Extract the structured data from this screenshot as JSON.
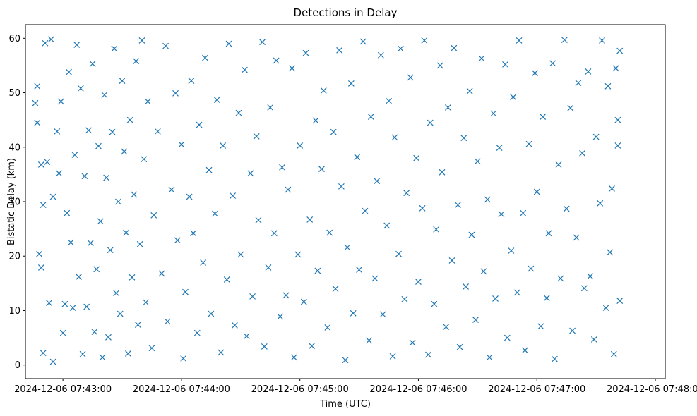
{
  "chart_data": {
    "type": "scatter",
    "title": "Detections in Delay",
    "xlabel": "Time (UTC)",
    "ylabel": "Bistatic Delay (km)",
    "marker": "x",
    "color": "#1f77b4",
    "x_range": [
      "2024-12-06 07:42:41",
      "2024-12-06 07:48:05"
    ],
    "ylim": [
      -2.5,
      62.5
    ],
    "x_ticks": [
      "2024-12-06 07:43:00",
      "2024-12-06 07:44:00",
      "2024-12-06 07:45:00",
      "2024-12-06 07:46:00",
      "2024-12-06 07:47:00",
      "2024-12-06 07:48:00"
    ],
    "y_ticks": [
      0,
      10,
      20,
      30,
      40,
      50,
      60
    ],
    "grid": false,
    "legend": "none",
    "sampled": "representative subset of the plotted detections",
    "points": [
      [
        "2024-12-06 07:42:46",
        48.1
      ],
      [
        "2024-12-06 07:42:47",
        51.2
      ],
      [
        "2024-12-06 07:42:47",
        44.5
      ],
      [
        "2024-12-06 07:42:48",
        20.4
      ],
      [
        "2024-12-06 07:42:49",
        36.8
      ],
      [
        "2024-12-06 07:42:49",
        17.9
      ],
      [
        "2024-12-06 07:42:50",
        29.4
      ],
      [
        "2024-12-06 07:42:50",
        2.2
      ],
      [
        "2024-12-06 07:42:51",
        59.1
      ],
      [
        "2024-12-06 07:42:52",
        37.3
      ],
      [
        "2024-12-06 07:42:53",
        11.4
      ],
      [
        "2024-12-06 07:42:54",
        59.8
      ],
      [
        "2024-12-06 07:42:55",
        0.6
      ],
      [
        "2024-12-06 07:42:55",
        30.9
      ],
      [
        "2024-12-06 07:42:57",
        42.9
      ],
      [
        "2024-12-06 07:42:58",
        35.2
      ],
      [
        "2024-12-06 07:42:59",
        48.4
      ],
      [
        "2024-12-06 07:43:00",
        5.9
      ],
      [
        "2024-12-06 07:43:01",
        11.2
      ],
      [
        "2024-12-06 07:43:02",
        27.9
      ],
      [
        "2024-12-06 07:43:03",
        53.8
      ],
      [
        "2024-12-06 07:43:04",
        22.5
      ],
      [
        "2024-12-06 07:43:05",
        10.5
      ],
      [
        "2024-12-06 07:43:06",
        38.6
      ],
      [
        "2024-12-06 07:43:07",
        58.8
      ],
      [
        "2024-12-06 07:43:08",
        16.2
      ],
      [
        "2024-12-06 07:43:09",
        50.8
      ],
      [
        "2024-12-06 07:43:10",
        2.0
      ],
      [
        "2024-12-06 07:43:11",
        34.7
      ],
      [
        "2024-12-06 07:43:12",
        10.7
      ],
      [
        "2024-12-06 07:43:13",
        43.1
      ],
      [
        "2024-12-06 07:43:14",
        22.4
      ],
      [
        "2024-12-06 07:43:15",
        55.3
      ],
      [
        "2024-12-06 07:43:16",
        6.1
      ],
      [
        "2024-12-06 07:43:17",
        17.6
      ],
      [
        "2024-12-06 07:43:18",
        40.2
      ],
      [
        "2024-12-06 07:43:19",
        26.4
      ],
      [
        "2024-12-06 07:43:20",
        1.4
      ],
      [
        "2024-12-06 07:43:21",
        49.6
      ],
      [
        "2024-12-06 07:43:22",
        34.4
      ],
      [
        "2024-12-06 07:43:23",
        5.1
      ],
      [
        "2024-12-06 07:43:24",
        21.1
      ],
      [
        "2024-12-06 07:43:25",
        42.8
      ],
      [
        "2024-12-06 07:43:26",
        58.1
      ],
      [
        "2024-12-06 07:43:27",
        13.2
      ],
      [
        "2024-12-06 07:43:28",
        30.0
      ],
      [
        "2024-12-06 07:43:29",
        9.4
      ],
      [
        "2024-12-06 07:43:30",
        52.2
      ],
      [
        "2024-12-06 07:43:31",
        39.2
      ],
      [
        "2024-12-06 07:43:32",
        24.3
      ],
      [
        "2024-12-06 07:43:33",
        2.1
      ],
      [
        "2024-12-06 07:43:34",
        45.0
      ],
      [
        "2024-12-06 07:43:35",
        16.1
      ],
      [
        "2024-12-06 07:43:36",
        31.3
      ],
      [
        "2024-12-06 07:43:37",
        55.8
      ],
      [
        "2024-12-06 07:43:38",
        7.4
      ],
      [
        "2024-12-06 07:43:39",
        22.2
      ],
      [
        "2024-12-06 07:43:40",
        59.6
      ],
      [
        "2024-12-06 07:43:41",
        37.8
      ],
      [
        "2024-12-06 07:43:42",
        11.5
      ],
      [
        "2024-12-06 07:43:43",
        48.4
      ],
      [
        "2024-12-06 07:43:45",
        3.1
      ],
      [
        "2024-12-06 07:43:46",
        27.5
      ],
      [
        "2024-12-06 07:43:48",
        42.9
      ],
      [
        "2024-12-06 07:43:50",
        16.8
      ],
      [
        "2024-12-06 07:43:52",
        58.6
      ],
      [
        "2024-12-06 07:43:53",
        8.0
      ],
      [
        "2024-12-06 07:43:55",
        32.2
      ],
      [
        "2024-12-06 07:43:57",
        49.9
      ],
      [
        "2024-12-06 07:43:58",
        22.9
      ],
      [
        "2024-12-06 07:44:00",
        40.5
      ],
      [
        "2024-12-06 07:44:01",
        1.2
      ],
      [
        "2024-12-06 07:44:02",
        13.4
      ],
      [
        "2024-12-06 07:44:04",
        30.9
      ],
      [
        "2024-12-06 07:44:05",
        52.2
      ],
      [
        "2024-12-06 07:44:06",
        24.2
      ],
      [
        "2024-12-06 07:44:08",
        5.9
      ],
      [
        "2024-12-06 07:44:09",
        44.1
      ],
      [
        "2024-12-06 07:44:11",
        18.8
      ],
      [
        "2024-12-06 07:44:12",
        56.4
      ],
      [
        "2024-12-06 07:44:14",
        35.8
      ],
      [
        "2024-12-06 07:44:15",
        9.4
      ],
      [
        "2024-12-06 07:44:17",
        27.8
      ],
      [
        "2024-12-06 07:44:18",
        48.7
      ],
      [
        "2024-12-06 07:44:20",
        2.3
      ],
      [
        "2024-12-06 07:44:21",
        40.3
      ],
      [
        "2024-12-06 07:44:23",
        15.7
      ],
      [
        "2024-12-06 07:44:24",
        59.0
      ],
      [
        "2024-12-06 07:44:26",
        31.1
      ],
      [
        "2024-12-06 07:44:27",
        7.3
      ],
      [
        "2024-12-06 07:44:29",
        46.3
      ],
      [
        "2024-12-06 07:44:30",
        20.3
      ],
      [
        "2024-12-06 07:44:32",
        54.2
      ],
      [
        "2024-12-06 07:44:33",
        5.3
      ],
      [
        "2024-12-06 07:44:35",
        35.2
      ],
      [
        "2024-12-06 07:44:36",
        12.6
      ],
      [
        "2024-12-06 07:44:38",
        42.0
      ],
      [
        "2024-12-06 07:44:39",
        26.6
      ],
      [
        "2024-12-06 07:44:41",
        59.3
      ],
      [
        "2024-12-06 07:44:42",
        3.4
      ],
      [
        "2024-12-06 07:44:44",
        17.9
      ],
      [
        "2024-12-06 07:44:45",
        47.3
      ],
      [
        "2024-12-06 07:44:47",
        24.2
      ],
      [
        "2024-12-06 07:44:48",
        55.9
      ],
      [
        "2024-12-06 07:44:50",
        8.9
      ],
      [
        "2024-12-06 07:44:51",
        36.3
      ],
      [
        "2024-12-06 07:44:53",
        12.8
      ],
      [
        "2024-12-06 07:44:54",
        32.2
      ],
      [
        "2024-12-06 07:44:56",
        54.5
      ],
      [
        "2024-12-06 07:44:57",
        1.4
      ],
      [
        "2024-12-06 07:44:59",
        20.3
      ],
      [
        "2024-12-06 07:45:00",
        40.3
      ],
      [
        "2024-12-06 07:45:02",
        11.6
      ],
      [
        "2024-12-06 07:45:03",
        57.3
      ],
      [
        "2024-12-06 07:45:05",
        26.7
      ],
      [
        "2024-12-06 07:45:06",
        3.5
      ],
      [
        "2024-12-06 07:45:08",
        44.9
      ],
      [
        "2024-12-06 07:45:09",
        17.3
      ],
      [
        "2024-12-06 07:45:11",
        36.0
      ],
      [
        "2024-12-06 07:45:12",
        50.4
      ],
      [
        "2024-12-06 07:45:14",
        6.9
      ],
      [
        "2024-12-06 07:45:15",
        24.3
      ],
      [
        "2024-12-06 07:45:17",
        42.8
      ],
      [
        "2024-12-06 07:45:18",
        14.0
      ],
      [
        "2024-12-06 07:45:20",
        57.8
      ],
      [
        "2024-12-06 07:45:21",
        32.8
      ],
      [
        "2024-12-06 07:45:23",
        0.9
      ],
      [
        "2024-12-06 07:45:24",
        21.6
      ],
      [
        "2024-12-06 07:45:26",
        51.7
      ],
      [
        "2024-12-06 07:45:27",
        9.5
      ],
      [
        "2024-12-06 07:45:29",
        38.2
      ],
      [
        "2024-12-06 07:45:30",
        17.5
      ],
      [
        "2024-12-06 07:45:32",
        59.4
      ],
      [
        "2024-12-06 07:45:33",
        28.3
      ],
      [
        "2024-12-06 07:45:35",
        4.5
      ],
      [
        "2024-12-06 07:45:36",
        45.6
      ],
      [
        "2024-12-06 07:45:38",
        15.9
      ],
      [
        "2024-12-06 07:45:39",
        33.8
      ],
      [
        "2024-12-06 07:45:41",
        56.9
      ],
      [
        "2024-12-06 07:45:42",
        9.3
      ],
      [
        "2024-12-06 07:45:44",
        25.6
      ],
      [
        "2024-12-06 07:45:45",
        48.5
      ],
      [
        "2024-12-06 07:45:47",
        1.6
      ],
      [
        "2024-12-06 07:45:48",
        41.8
      ],
      [
        "2024-12-06 07:45:50",
        20.4
      ],
      [
        "2024-12-06 07:45:51",
        58.1
      ],
      [
        "2024-12-06 07:45:53",
        12.1
      ],
      [
        "2024-12-06 07:45:54",
        31.6
      ],
      [
        "2024-12-06 07:45:56",
        52.8
      ],
      [
        "2024-12-06 07:45:57",
        4.1
      ],
      [
        "2024-12-06 07:45:59",
        38.0
      ],
      [
        "2024-12-06 07:46:00",
        15.3
      ],
      [
        "2024-12-06 07:46:02",
        28.8
      ],
      [
        "2024-12-06 07:46:03",
        59.6
      ],
      [
        "2024-12-06 07:46:05",
        1.9
      ],
      [
        "2024-12-06 07:46:06",
        44.5
      ],
      [
        "2024-12-06 07:46:08",
        11.2
      ],
      [
        "2024-12-06 07:46:09",
        24.9
      ],
      [
        "2024-12-06 07:46:11",
        55.0
      ],
      [
        "2024-12-06 07:46:12",
        35.4
      ],
      [
        "2024-12-06 07:46:14",
        7.0
      ],
      [
        "2024-12-06 07:46:15",
        47.3
      ],
      [
        "2024-12-06 07:46:17",
        19.2
      ],
      [
        "2024-12-06 07:46:18",
        58.2
      ],
      [
        "2024-12-06 07:46:20",
        29.4
      ],
      [
        "2024-12-06 07:46:21",
        3.3
      ],
      [
        "2024-12-06 07:46:23",
        41.7
      ],
      [
        "2024-12-06 07:46:24",
        14.4
      ],
      [
        "2024-12-06 07:46:26",
        50.3
      ],
      [
        "2024-12-06 07:46:27",
        23.9
      ],
      [
        "2024-12-06 07:46:29",
        8.3
      ],
      [
        "2024-12-06 07:46:30",
        37.4
      ],
      [
        "2024-12-06 07:46:32",
        56.3
      ],
      [
        "2024-12-06 07:46:33",
        17.2
      ],
      [
        "2024-12-06 07:46:35",
        30.4
      ],
      [
        "2024-12-06 07:46:36",
        1.4
      ],
      [
        "2024-12-06 07:46:38",
        46.2
      ],
      [
        "2024-12-06 07:46:39",
        12.2
      ],
      [
        "2024-12-06 07:46:41",
        39.9
      ],
      [
        "2024-12-06 07:46:42",
        27.7
      ],
      [
        "2024-12-06 07:46:44",
        55.2
      ],
      [
        "2024-12-06 07:46:45",
        5.0
      ],
      [
        "2024-12-06 07:46:47",
        21.0
      ],
      [
        "2024-12-06 07:46:48",
        49.2
      ],
      [
        "2024-12-06 07:46:50",
        13.3
      ],
      [
        "2024-12-06 07:46:51",
        59.6
      ],
      [
        "2024-12-06 07:46:53",
        27.9
      ],
      [
        "2024-12-06 07:46:54",
        2.7
      ],
      [
        "2024-12-06 07:46:56",
        40.6
      ],
      [
        "2024-12-06 07:46:57",
        17.7
      ],
      [
        "2024-12-06 07:46:59",
        53.6
      ],
      [
        "2024-12-06 07:47:00",
        31.8
      ],
      [
        "2024-12-06 07:47:02",
        7.1
      ],
      [
        "2024-12-06 07:47:03",
        45.6
      ],
      [
        "2024-12-06 07:47:05",
        12.3
      ],
      [
        "2024-12-06 07:47:06",
        24.2
      ],
      [
        "2024-12-06 07:47:08",
        55.4
      ],
      [
        "2024-12-06 07:47:09",
        1.1
      ],
      [
        "2024-12-06 07:47:11",
        36.8
      ],
      [
        "2024-12-06 07:47:12",
        15.9
      ],
      [
        "2024-12-06 07:47:14",
        59.7
      ],
      [
        "2024-12-06 07:47:15",
        28.7
      ],
      [
        "2024-12-06 07:47:17",
        47.2
      ],
      [
        "2024-12-06 07:47:18",
        6.3
      ],
      [
        "2024-12-06 07:47:20",
        23.4
      ],
      [
        "2024-12-06 07:47:21",
        51.8
      ],
      [
        "2024-12-06 07:47:23",
        38.9
      ],
      [
        "2024-12-06 07:47:24",
        14.1
      ],
      [
        "2024-12-06 07:47:26",
        53.9
      ],
      [
        "2024-12-06 07:47:27",
        16.3
      ],
      [
        "2024-12-06 07:47:29",
        4.7
      ],
      [
        "2024-12-06 07:47:30",
        41.9
      ],
      [
        "2024-12-06 07:47:32",
        29.7
      ],
      [
        "2024-12-06 07:47:33",
        59.6
      ],
      [
        "2024-12-06 07:47:35",
        10.5
      ],
      [
        "2024-12-06 07:47:36",
        51.2
      ],
      [
        "2024-12-06 07:47:37",
        20.7
      ],
      [
        "2024-12-06 07:47:38",
        32.4
      ],
      [
        "2024-12-06 07:47:39",
        2.0
      ],
      [
        "2024-12-06 07:47:40",
        54.5
      ],
      [
        "2024-12-06 07:47:41",
        40.3
      ],
      [
        "2024-12-06 07:47:41",
        45.0
      ],
      [
        "2024-12-06 07:47:42",
        57.7
      ],
      [
        "2024-12-06 07:47:42",
        11.8
      ]
    ]
  }
}
